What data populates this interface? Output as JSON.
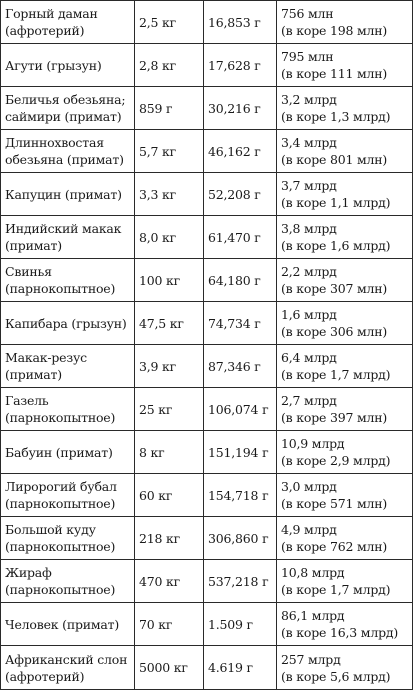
{
  "table": {
    "rows": [
      {
        "name": [
          "Горный даман",
          "(афротерий)"
        ],
        "mass": "2,5 кг",
        "brain": "16,853 г",
        "neurons": [
          "756 млн",
          "(в коре 198 млн)"
        ]
      },
      {
        "name": [
          "Агути (грызун)"
        ],
        "mass": "2,8 кг",
        "brain": "17,628 г",
        "neurons": [
          "795 млн",
          "(в коре 111 млн)"
        ]
      },
      {
        "name": [
          "Беличья обезьяна;",
          "саймири (примат)"
        ],
        "mass": "859 г",
        "brain": "30,216 г",
        "neurons": [
          "3,2 млрд",
          "(в коре 1,3 млрд)"
        ]
      },
      {
        "name": [
          "Длиннохвостая",
          "обезьяна (примат)"
        ],
        "mass": "5,7 кг",
        "brain": "46,162 г",
        "neurons": [
          "3,4 млрд",
          "(в коре 801 млн)"
        ]
      },
      {
        "name": [
          "Капуцин (примат)"
        ],
        "mass": "3,3 кг",
        "brain": "52,208 г",
        "neurons": [
          "3,7 млрд",
          "(в коре 1,1 млрд)"
        ]
      },
      {
        "name": [
          "Индийский макак",
          "(примат)"
        ],
        "mass": "8,0 кг",
        "brain": "61,470 г",
        "neurons": [
          "3,8 млрд",
          "(в коре 1,6 млрд)"
        ]
      },
      {
        "name": [
          "Свинья",
          "(парнокопытное)"
        ],
        "mass": "100 кг",
        "brain": "64,180 г",
        "neurons": [
          "2,2 млрд",
          "(в коре 307 млн)"
        ]
      },
      {
        "name": [
          "Капибара (грызун)"
        ],
        "mass": "47,5 кг",
        "brain": "74,734 г",
        "neurons": [
          "1,6 млрд",
          "(в коре 306 млн)"
        ]
      },
      {
        "name": [
          "Макак-резус",
          "(примат)"
        ],
        "mass": "3,9 кг",
        "brain": "87,346 г",
        "neurons": [
          "6,4 млрд",
          "(в коре 1,7 млрд)"
        ]
      },
      {
        "name": [
          "Газель",
          "(парнокопытное)"
        ],
        "mass": "25 кг",
        "brain": "106,074 г",
        "neurons": [
          "2,7 млрд",
          "(в коре 397 млн)"
        ]
      },
      {
        "name": [
          "Бабуин (примат)"
        ],
        "mass": "8 кг",
        "brain": "151,194 г",
        "neurons": [
          "10,9 млрд",
          "(в коре 2,9 млрд)"
        ]
      },
      {
        "name": [
          "Лиророгий бубал",
          "(парнокопытное)"
        ],
        "mass": "60 кг",
        "brain": "154,718 г",
        "neurons": [
          "3,0 млрд",
          "(в коре 571 млн)"
        ]
      },
      {
        "name": [
          "Большой куду",
          "(парнокопытное)"
        ],
        "mass": "218 кг",
        "brain": "306,860 г",
        "neurons": [
          "4,9 млрд",
          "(в коре 762 млн)"
        ]
      },
      {
        "name": [
          "Жираф",
          "(парнокопытное)"
        ],
        "mass": "470 кг",
        "brain": "537,218 г",
        "neurons": [
          "10,8 млрд",
          "(в коре 1,7 млрд)"
        ]
      },
      {
        "name": [
          "Человек (примат)"
        ],
        "mass": "70 кг",
        "brain": "1.509 г",
        "neurons": [
          "86,1 млрд",
          "(в коре 16,3 млрд)"
        ]
      },
      {
        "name": [
          "Африканский слон",
          "(афротерий)"
        ],
        "mass": "5000 кг",
        "brain": "4.619 г",
        "neurons": [
          "257 млрд",
          "(в коре 5,6 млрд)"
        ]
      }
    ]
  }
}
